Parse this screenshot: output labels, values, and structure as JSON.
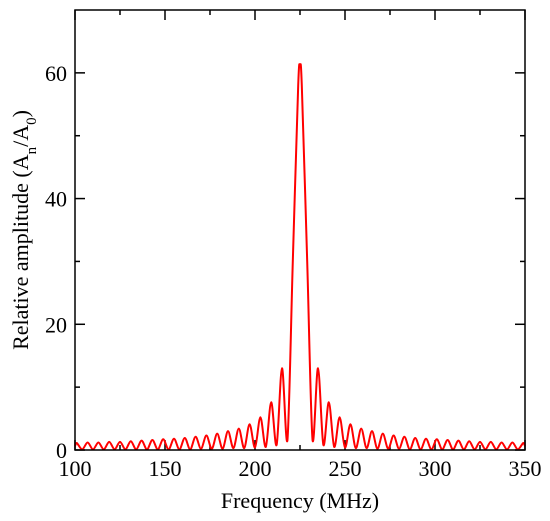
{
  "chart_data": {
    "type": "line",
    "title": "",
    "xlabel": "Frequency (MHz)",
    "ylabel": {
      "text": "Relative amplitude (A",
      "sub1": "n",
      "mid": "/A",
      "sub2": "0",
      "end": ")"
    },
    "xlim": [
      100,
      350
    ],
    "ylim": [
      0,
      70
    ],
    "xticks": [
      100,
      150,
      200,
      250,
      300,
      350
    ],
    "yticks": [
      0,
      20,
      40,
      60
    ],
    "xtick_labels": [
      "100",
      "150",
      "200",
      "250",
      "300",
      "350"
    ],
    "ytick_labels": [
      "0",
      "20",
      "40",
      "60"
    ],
    "grid": false,
    "legend": "none",
    "series": [
      {
        "color": "#ff0000",
        "x": [
          100,
          101,
          104,
          107,
          110,
          113,
          116,
          119,
          122,
          125,
          128,
          131,
          134,
          137,
          140,
          143,
          146,
          149,
          152,
          155,
          158,
          161,
          164,
          167,
          170,
          173,
          176,
          179,
          182,
          185,
          188,
          191,
          194,
          197,
          200,
          203,
          206,
          209,
          212,
          215,
          218,
          221,
          224,
          225,
          226,
          229,
          232,
          235,
          238,
          241,
          244,
          247,
          250,
          253,
          256,
          259,
          262,
          265,
          268,
          271,
          274,
          277,
          280,
          283,
          286,
          289,
          292,
          295,
          298,
          301,
          304,
          307,
          310,
          313,
          316,
          319,
          322,
          325,
          328,
          331,
          334,
          337,
          340,
          343,
          346,
          349,
          350
        ],
        "y": [
          0.6,
          1.1,
          0.1,
          1.2,
          0.1,
          1.2,
          0.1,
          1.3,
          0.1,
          1.3,
          0.1,
          1.4,
          0.1,
          1.5,
          0.1,
          1.6,
          0.1,
          1.7,
          0.1,
          1.8,
          0.1,
          1.9,
          0.1,
          2.1,
          0.2,
          2.3,
          0.2,
          2.6,
          0.2,
          3.0,
          0.3,
          3.4,
          0.3,
          4.1,
          0.4,
          5.2,
          0.5,
          7.6,
          0.8,
          13.0,
          1.5,
          30.0,
          58.0,
          61.0,
          58.0,
          30.0,
          1.5,
          13.0,
          0.8,
          7.6,
          0.5,
          5.2,
          0.4,
          4.1,
          0.3,
          3.4,
          0.3,
          3.0,
          0.2,
          2.6,
          0.2,
          2.3,
          0.2,
          2.1,
          0.1,
          1.9,
          0.1,
          1.8,
          0.1,
          1.7,
          0.1,
          1.6,
          0.1,
          1.5,
          0.1,
          1.4,
          0.1,
          1.3,
          0.1,
          1.3,
          0.1,
          1.2,
          0.1,
          1.2,
          0.1,
          1.1,
          0.6
        ]
      }
    ]
  }
}
